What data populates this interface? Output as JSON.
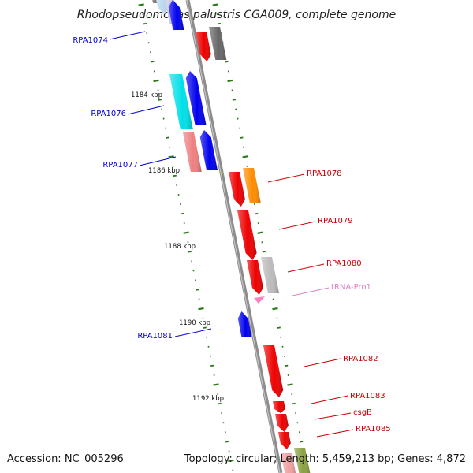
{
  "title": "Rhodopseudomonas palustris CGA009, complete genome",
  "accession": "Accession: NC_005296",
  "topology": "Topology: circular; Length: 5,459,213 bp; Genes: 4,872",
  "colors": {
    "backbone": "#8c8c8c",
    "tick": "#2a7a1a",
    "forward_label": "#0000cc",
    "reverse_label": "#cc0000",
    "trna_label": "#e080c0"
  },
  "kbp_marks": [
    {
      "label": "1184 kbp"
    },
    {
      "label": "1186 kbp"
    },
    {
      "label": "1188 kbp"
    },
    {
      "label": "1190 kbp"
    },
    {
      "label": "1192 kbp"
    }
  ],
  "gene_labels": [
    {
      "text": "RPA1074",
      "strand": "forward"
    },
    {
      "text": "RPA1076",
      "strand": "forward"
    },
    {
      "text": "RPA1077",
      "strand": "forward"
    },
    {
      "text": "RPA1078",
      "strand": "reverse"
    },
    {
      "text": "RPA1079",
      "strand": "reverse"
    },
    {
      "text": "RPA1080",
      "strand": "reverse"
    },
    {
      "text": "tRNA-Pro1",
      "strand": "trna"
    },
    {
      "text": "RPA1081",
      "strand": "forward"
    },
    {
      "text": "RPA1082",
      "strand": "reverse"
    },
    {
      "text": "RPA1083",
      "strand": "reverse"
    },
    {
      "text": "csgB",
      "strand": "reverse"
    },
    {
      "text": "RPA1085",
      "strand": "reverse"
    }
  ],
  "features": [
    {
      "name": "feature-top-gray-left",
      "color": "#6a6a6a"
    },
    {
      "name": "feature-top-lightblue",
      "color": "#bcd8f0"
    },
    {
      "name": "feature-top-lavender",
      "color": "#c8c8e8"
    },
    {
      "name": "feature-top-blue",
      "color": "#0000ee"
    },
    {
      "name": "feature-rpa1074-red",
      "color": "#ee0000"
    },
    {
      "name": "feature-rpa1074-gray",
      "color": "#666666"
    },
    {
      "name": "feature-rpa1076-cyan",
      "color": "#00e0e8"
    },
    {
      "name": "feature-rpa1076-blue",
      "color": "#0000ee"
    },
    {
      "name": "feature-rpa1077-pink",
      "color": "#ee8080"
    },
    {
      "name": "feature-rpa1077-blue",
      "color": "#0000ee"
    },
    {
      "name": "feature-rpa1078-red",
      "color": "#ee0000"
    },
    {
      "name": "feature-rpa1078-orange",
      "color": "#ff8c00"
    },
    {
      "name": "feature-rpa1079-red",
      "color": "#ee0000"
    },
    {
      "name": "feature-rpa1080-red",
      "color": "#ee0000"
    },
    {
      "name": "feature-rpa1080-silver",
      "color": "#bbbbbb"
    },
    {
      "name": "feature-trna-pro1",
      "color": "#ff80c0"
    },
    {
      "name": "feature-rpa1081-blue",
      "color": "#0000ee"
    },
    {
      "name": "feature-rpa1082-red",
      "color": "#ee0000"
    },
    {
      "name": "feature-rpa1083-red",
      "color": "#ee0000"
    },
    {
      "name": "feature-csgb-red",
      "color": "#ee0000"
    },
    {
      "name": "feature-rpa1085-red",
      "color": "#ee0000"
    },
    {
      "name": "feature-bottom-pink",
      "color": "#f0a0a0"
    },
    {
      "name": "feature-bottom-olive",
      "color": "#8aa040"
    }
  ]
}
